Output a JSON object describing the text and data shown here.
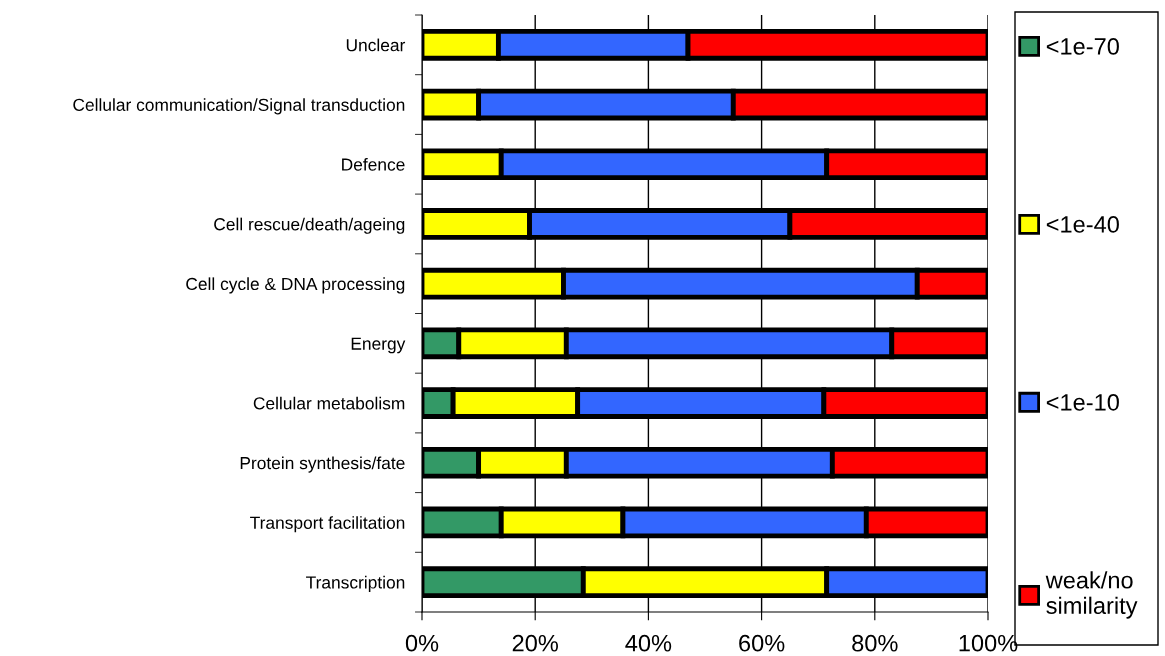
{
  "chart_data": {
    "type": "bar",
    "orientation": "horizontal",
    "stacked": true,
    "categories": [
      "Unclear",
      "Cellular communication/Signal transduction",
      "Defence",
      "Cell rescue/death/ageing",
      "Cell cycle & DNA processing",
      "Energy",
      "Cellular metabolism",
      "Protein synthesis/fate",
      "Transport facilitation",
      "Transcription"
    ],
    "series": [
      {
        "name": "<1e-70",
        "color": "#339966",
        "values": [
          null,
          null,
          null,
          null,
          null,
          6.5,
          5.5,
          10,
          14,
          28.5
        ]
      },
      {
        "name": "<1e-40",
        "color": "#ffff00",
        "values": [
          13.5,
          10,
          14,
          19,
          25,
          19,
          22,
          15.5,
          21.5,
          43
        ]
      },
      {
        "name": "<1e-10",
        "color": "#3366ff",
        "values": [
          33.5,
          45,
          57.5,
          46,
          62.5,
          57.5,
          43.5,
          47,
          43,
          28.5
        ]
      },
      {
        "name": "weak/no\nsimilarity",
        "color": "#ff0000",
        "values": [
          53,
          45,
          28.5,
          35,
          12.5,
          17,
          29,
          27.5,
          21.5,
          null
        ]
      }
    ],
    "xlim": [
      0,
      100
    ],
    "xticks": [
      {
        "value": 0,
        "label": "0%"
      },
      {
        "value": 20,
        "label": "20%"
      },
      {
        "value": 40,
        "label": "40%"
      },
      {
        "value": 60,
        "label": "60%"
      },
      {
        "value": 80,
        "label": "80%"
      },
      {
        "value": 100,
        "label": "100%"
      }
    ],
    "grid": "x",
    "legend": "right"
  }
}
